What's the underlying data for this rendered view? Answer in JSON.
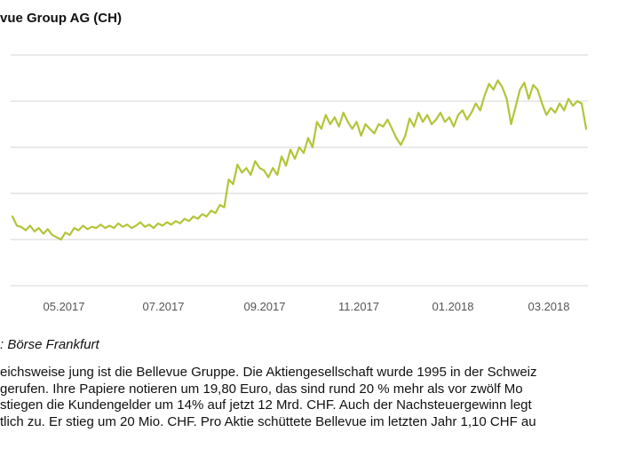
{
  "chart_data": {
    "type": "line",
    "title": "vue Group AG (CH)",
    "x_tick_labels": [
      "05.2017",
      "07.2017",
      "09.2017",
      "11.2017",
      "01.2018",
      "03.2018"
    ],
    "y_gridlines": 6,
    "grid": "horizontal",
    "line_color": "#b3c438",
    "series": [
      {
        "values": [
          0.6,
          0.52,
          0.51,
          0.48,
          0.52,
          0.47,
          0.5,
          0.45,
          0.49,
          0.44,
          0.42,
          0.4,
          0.46,
          0.44,
          0.5,
          0.48,
          0.52,
          0.49,
          0.51,
          0.5,
          0.53,
          0.5,
          0.52,
          0.5,
          0.54,
          0.51,
          0.53,
          0.5,
          0.52,
          0.55,
          0.51,
          0.53,
          0.5,
          0.54,
          0.52,
          0.55,
          0.53,
          0.56,
          0.54,
          0.58,
          0.56,
          0.6,
          0.58,
          0.62,
          0.6,
          0.65,
          0.63,
          0.7,
          0.68,
          0.92,
          0.88,
          1.05,
          0.98,
          1.02,
          0.96,
          1.08,
          1.02,
          1.0,
          0.94,
          1.02,
          0.96,
          1.12,
          1.04,
          1.18,
          1.1,
          1.2,
          1.15,
          1.28,
          1.2,
          1.42,
          1.36,
          1.48,
          1.4,
          1.46,
          1.38,
          1.5,
          1.42,
          1.36,
          1.42,
          1.3,
          1.4,
          1.36,
          1.32,
          1.4,
          1.38,
          1.44,
          1.36,
          1.28,
          1.22,
          1.3,
          1.45,
          1.38,
          1.5,
          1.42,
          1.48,
          1.4,
          1.44,
          1.5,
          1.42,
          1.46,
          1.38,
          1.48,
          1.52,
          1.44,
          1.5,
          1.58,
          1.52,
          1.65,
          1.75,
          1.7,
          1.78,
          1.72,
          1.62,
          1.4,
          1.55,
          1.7,
          1.76,
          1.62,
          1.74,
          1.7,
          1.58,
          1.48,
          1.54,
          1.5,
          1.58,
          1.52,
          1.62,
          1.56,
          1.6,
          1.58,
          1.36
        ]
      }
    ]
  },
  "source": ": Börse Frankfurt",
  "article_lines": [
    "eichsweise jung ist die Bellevue Gruppe. Die Aktiengesellschaft wurde 1995 in der Schweiz",
    "gerufen. Ihre Papiere notieren um 19,80 Euro, das sind rund 20 % mehr als vor zwölf Mo",
    "stiegen die Kundengelder um 14% auf jetzt 12 Mrd. CHF. Auch der Nachsteuergewinn legt",
    "tlich zu. Er stieg um 20 Mio. CHF. Pro Aktie schüttete Bellevue im letzten Jahr 1,10 CHF au"
  ]
}
